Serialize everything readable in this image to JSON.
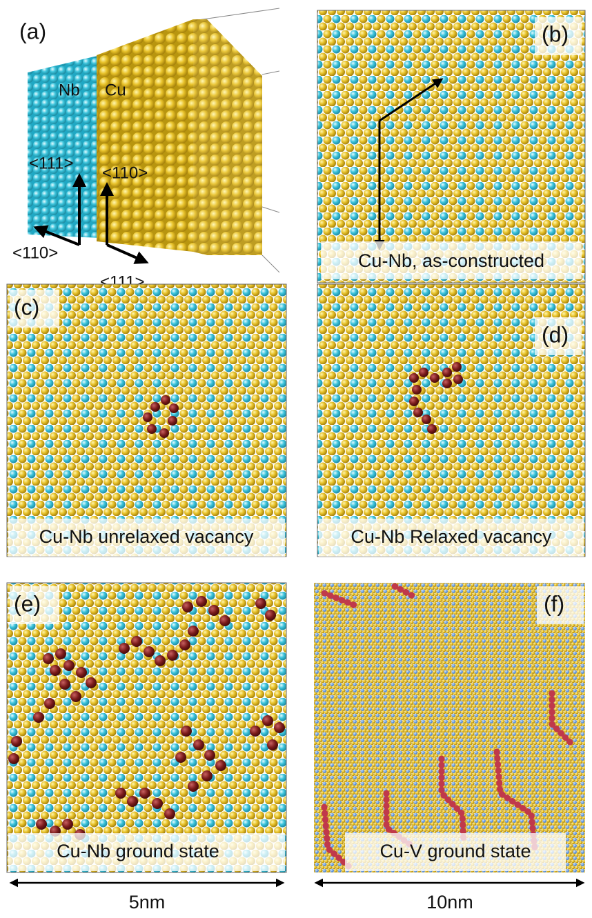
{
  "panels": {
    "a": {
      "label": "(a)",
      "left_material": "Nb",
      "right_material": "Cu",
      "nb_axes": [
        "<111>",
        "<110>"
      ],
      "cu_axes": [
        "<110>",
        "<111>"
      ]
    },
    "b": {
      "label": "(b)",
      "caption": "Cu-Nb, as-constructed"
    },
    "c": {
      "label": "(c)",
      "caption": "Cu-Nb unrelaxed vacancy"
    },
    "d": {
      "label": "(d)",
      "caption": "Cu-Nb Relaxed vacancy"
    },
    "e": {
      "label": "(e)",
      "caption": "Cu-Nb ground state"
    },
    "f": {
      "label": "(f)",
      "caption": "Cu-V ground state"
    }
  },
  "scale_bars": [
    "5nm",
    "10nm"
  ]
}
